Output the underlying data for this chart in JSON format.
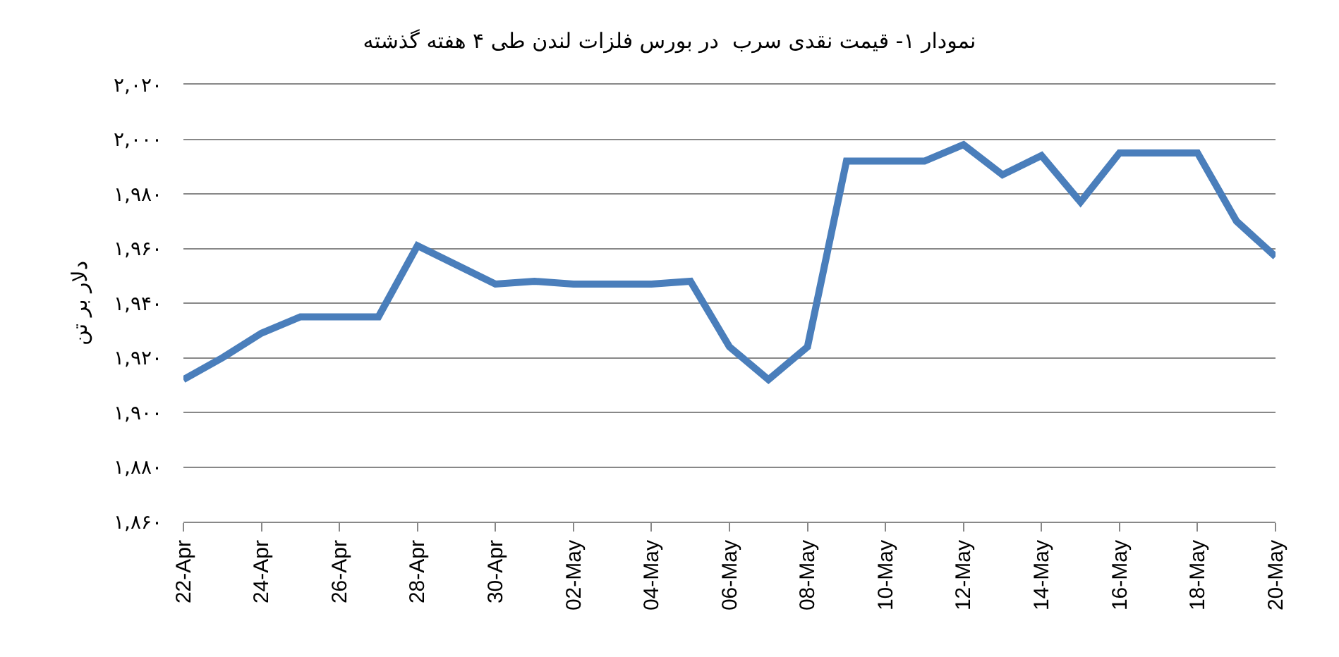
{
  "chart_data": {
    "type": "line",
    "title": "نمودار ۱- قیمت نقدی سرب  در بورس فلزات لندن طی ۴ هفته گذشته",
    "ylabel": "دلار بر تن",
    "categories": [
      "22-Apr",
      null,
      "24-Apr",
      null,
      "26-Apr",
      null,
      "28-Apr",
      null,
      "30-Apr",
      null,
      "02-May",
      null,
      "04-May",
      null,
      "06-May",
      null,
      "08-May",
      null,
      "10-May",
      null,
      "12-May",
      null,
      "14-May",
      null,
      "16-May",
      null,
      "18-May",
      null,
      "20-May"
    ],
    "series": [
      {
        "color": "#4a7ebb",
        "values": [
          1912,
          1920,
          1929,
          1935,
          1935,
          1935,
          1961,
          1954,
          1947,
          1948,
          1947,
          1947,
          1947,
          1948,
          1924,
          1912,
          1924,
          1992,
          1992,
          1992,
          1998,
          1987,
          1994,
          1977,
          1995,
          1995,
          1995,
          1970,
          1957
        ]
      }
    ],
    "ylim": [
      1860,
      2020
    ],
    "yticks": [
      {
        "value": 1860,
        "label": "۱,۸۶۰"
      },
      {
        "value": 1880,
        "label": "۱,۸۸۰"
      },
      {
        "value": 1900,
        "label": "۱,۹۰۰"
      },
      {
        "value": 1920,
        "label": "۱,۹۲۰"
      },
      {
        "value": 1940,
        "label": "۱,۹۴۰"
      },
      {
        "value": 1960,
        "label": "۱,۹۶۰"
      },
      {
        "value": 1980,
        "label": "۱,۹۸۰"
      },
      {
        "value": 2000,
        "label": "۲,۰۰۰"
      },
      {
        "value": 2020,
        "label": "۲,۰۲۰"
      }
    ],
    "grid": "y",
    "marker": "none",
    "line_style": "solid"
  }
}
